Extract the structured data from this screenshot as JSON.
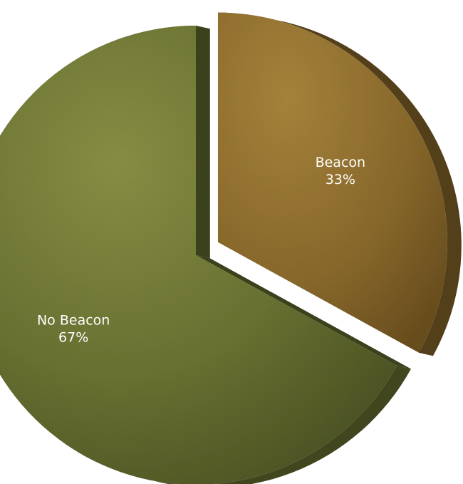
{
  "chart_data": {
    "type": "pie",
    "title": "",
    "slices": [
      {
        "label": "Beacon",
        "value": 33,
        "value_label": "33%",
        "color": "#8b6a2c"
      },
      {
        "label": "No Beacon",
        "value": 67,
        "value_label": "67%",
        "color": "#6c7534"
      }
    ],
    "exploded": [
      "Beacon"
    ],
    "style": "3d-textured"
  }
}
